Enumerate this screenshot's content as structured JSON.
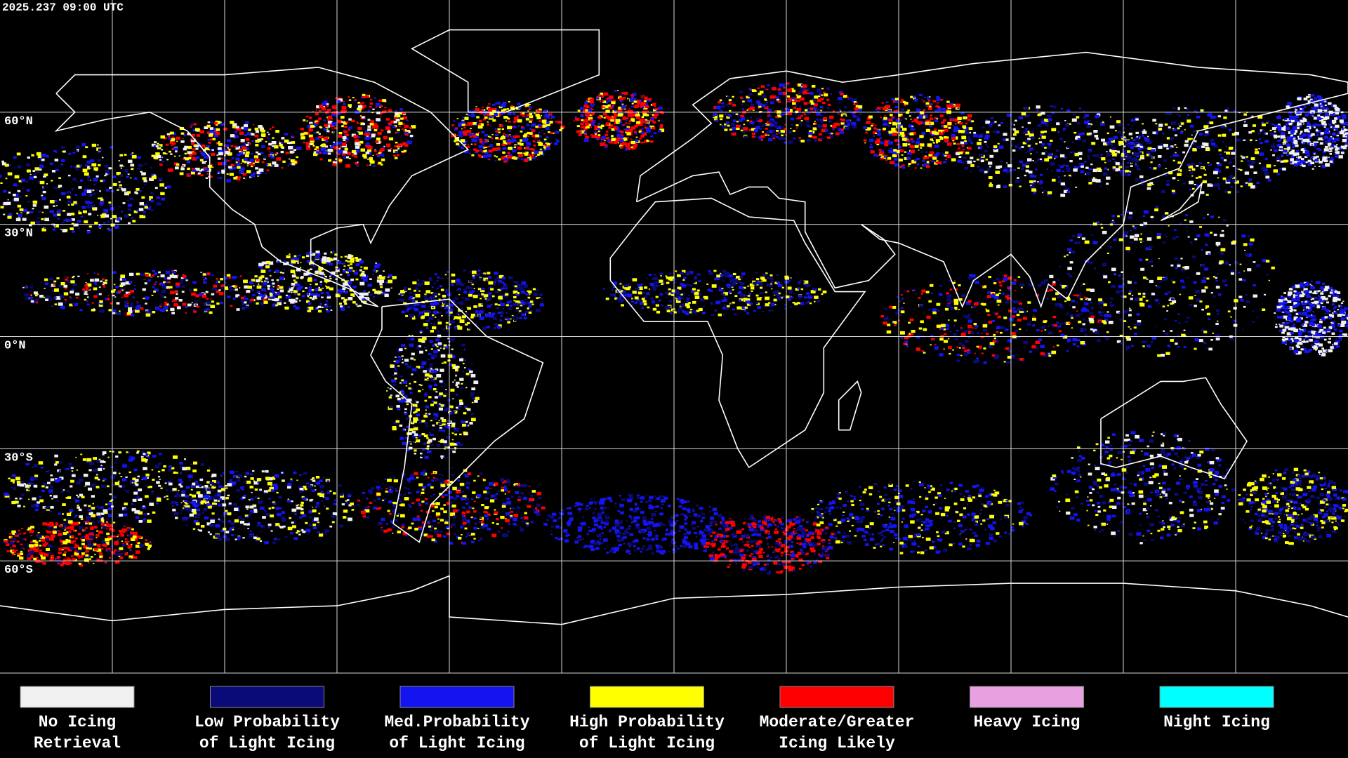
{
  "timestamp": "2025.237 09:00 UTC",
  "latitude_labels": [
    "60°N",
    "30°N",
    "0°N",
    "30°S",
    "60°S"
  ],
  "legend": [
    {
      "label_lines": [
        "No Icing",
        "Retrieval"
      ],
      "color": "#f0f0f0"
    },
    {
      "label_lines": [
        "Low Probability",
        "of Light Icing"
      ],
      "color": "#0a0a78"
    },
    {
      "label_lines": [
        "Med.Probability",
        "of Light Icing"
      ],
      "color": "#1414f0"
    },
    {
      "label_lines": [
        "High Probability",
        "of Light Icing"
      ],
      "color": "#ffff00"
    },
    {
      "label_lines": [
        "Moderate/Greater",
        "Icing Likely"
      ],
      "color": "#ff0000"
    },
    {
      "label_lines": [
        "Heavy Icing"
      ],
      "color": "#e8a0e0"
    },
    {
      "label_lines": [
        "Night Icing"
      ],
      "color": "#00ffff"
    }
  ]
}
